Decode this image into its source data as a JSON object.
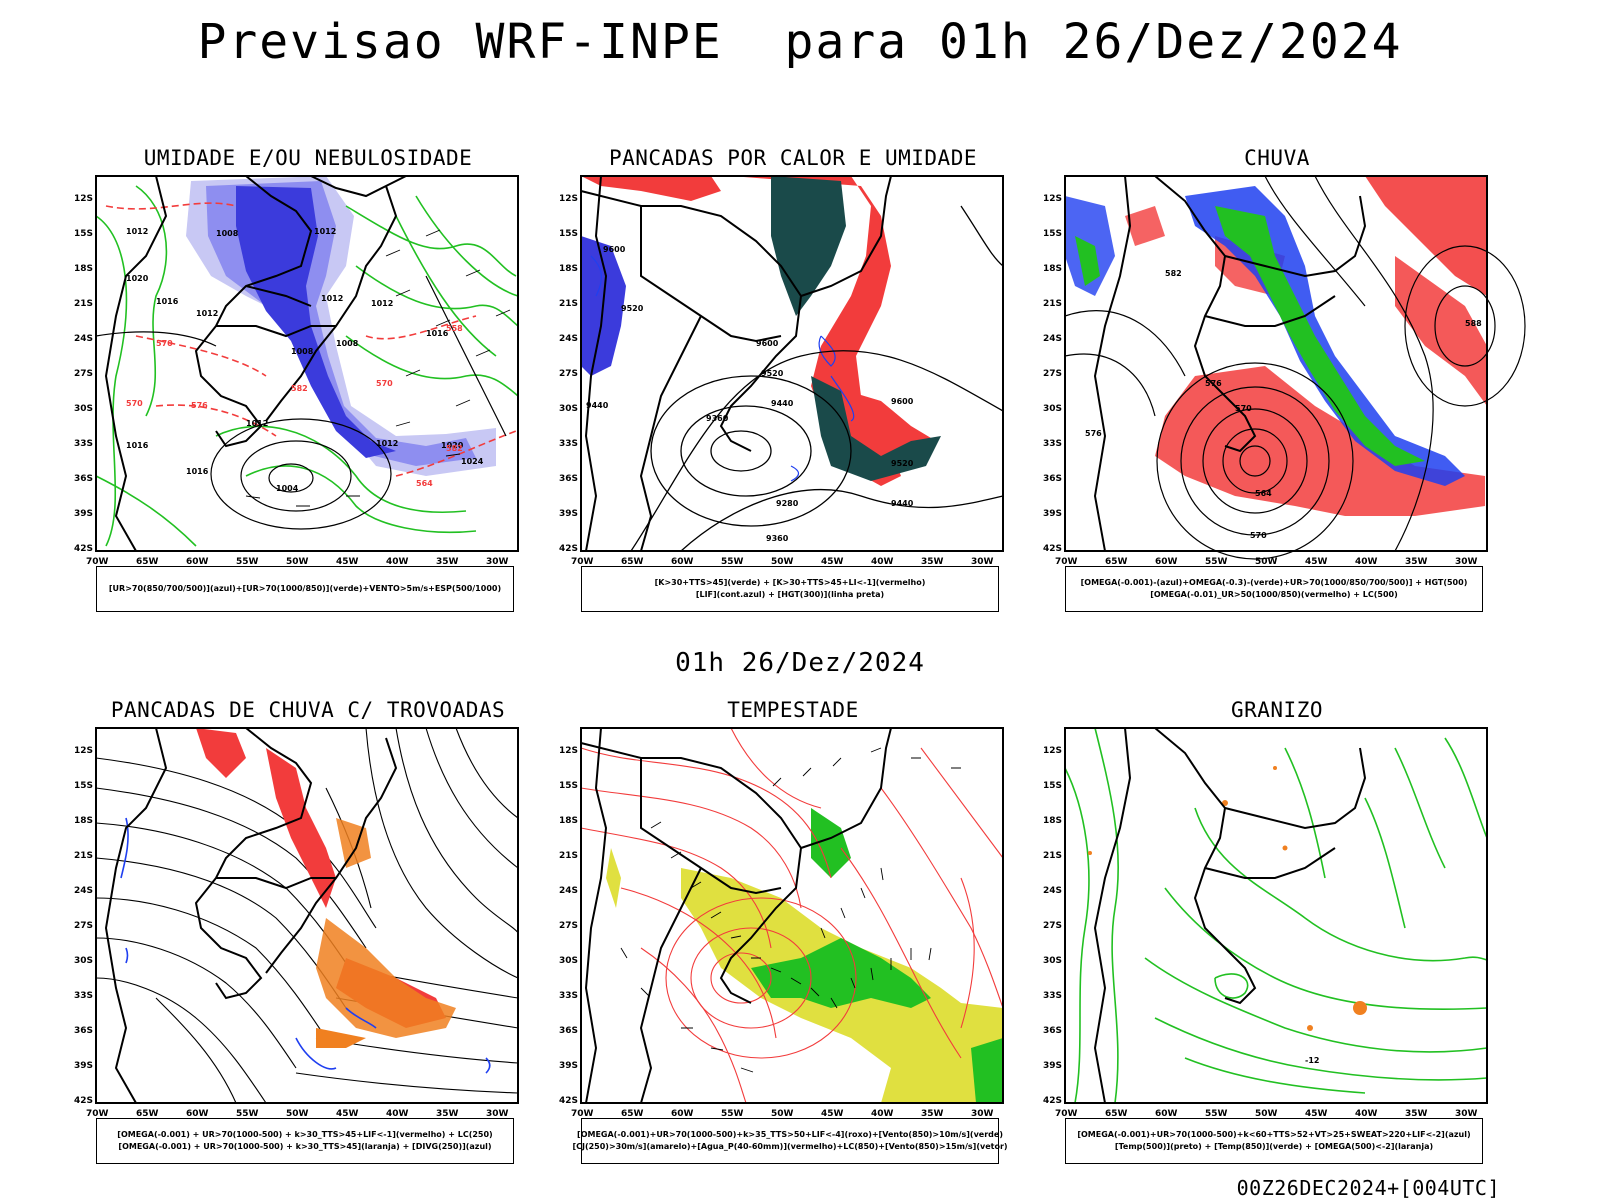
{
  "page": {
    "title": "Previsao WRF-INPE  para 01h 26/Dez/2024",
    "subtitle": "01h 26/Dez/2024",
    "footer": "00Z26DEC2024+[004UTC]"
  },
  "axes": {
    "lat_labels": [
      "12S",
      "15S",
      "18S",
      "21S",
      "24S",
      "27S",
      "30S",
      "33S",
      "36S",
      "39S",
      "42S"
    ],
    "lon_labels": [
      "70W",
      "65W",
      "60W",
      "55W",
      "50W",
      "45W",
      "40W",
      "35W",
      "30W"
    ]
  },
  "colors": {
    "blue": "#1f3ff0",
    "light_blue": "#8e8ef0",
    "pale_blue": "#c8c8f4",
    "green": "#22c022",
    "red": "#f23c3c",
    "dark_teal": "#1a4a4a",
    "yellow": "#e0e040",
    "orange": "#f08020",
    "black": "#000000"
  },
  "panels": [
    {
      "id": "umidade",
      "title": "UMIDADE E/OU NEBULOSIDADE",
      "legend": [
        "[UR>70(850/700/500)](azul)+[UR>70(1000/850)](verde)+VENTO>5m/s+ESP(500/1000)"
      ],
      "contour_labels": [
        "1012",
        "1008",
        "1012",
        "1012",
        "1012",
        "1020",
        "1016",
        "1012",
        "1008",
        "1016",
        "1008",
        "1012",
        "1016",
        "1004",
        "1012",
        "1020",
        "1024",
        "1016",
        "570",
        "576",
        "582",
        "564",
        "582",
        "570",
        "558",
        "570"
      ]
    },
    {
      "id": "pancadas-calor",
      "title": "PANCADAS POR CALOR E UMIDADE",
      "legend": [
        "[K>30+TTS>45](verde) + [K>30+TTS>45+LI<-1](vermelho)",
        "[LIF](cont.azul) + [HGT(300)](linha preta)"
      ],
      "contour_labels": [
        "9600",
        "9520",
        "9600",
        "9520",
        "9440",
        "9360",
        "9280",
        "9360",
        "9440",
        "9520",
        "9440",
        "9600"
      ]
    },
    {
      "id": "chuva",
      "title": "CHUVA",
      "legend": [
        "[OMEGA(-0.001)-(azul)+OMEGA(-0.3)-(verde)+UR>70(1000/850/700/500)] + HGT(500)",
        "[OMEGA(-0.01)_UR>50(1000/850)(vermelho) + LC(500)"
      ],
      "contour_labels": [
        "582",
        "588",
        "576",
        "570",
        "576",
        "564",
        "570"
      ]
    },
    {
      "id": "trovoadas",
      "title": "PANCADAS DE CHUVA C/ TROVOADAS",
      "legend": [
        "[OMEGA(-0.001) + UR>70(1000-500) + k>30_TTS>45+LIF<-1](vermelho) + LC(250)",
        "[OMEGA(-0.001) + UR>70(1000-500) + k>30_TTS>45](laranja) + [DIVG(250)](azul)"
      ],
      "contour_labels": []
    },
    {
      "id": "tempestade",
      "title": "TEMPESTADE",
      "legend": [
        "[OMEGA(-0.001)+UR>70(1000-500)+k>35_TTS>50+LIF<-4](roxo)+[Vento(850)>10m/s](verde)",
        "[CJ(250)>30m/s](amarelo)+[Agua_P(40-60mm)](vermelho)+LC(850)+[Vento(850)>15m/s](vetor)"
      ],
      "contour_labels": []
    },
    {
      "id": "granizo",
      "title": "GRANIZO",
      "legend": [
        "[OMEGA(-0.001)+UR>70(1000-500)+k<60+TTS>52+VT>25+SWEAT>220+LIF<-2](azul)",
        "[Temp(500)](preto) + [Temp(850)](verde) + [OMEGA(500)<-2](laranja)"
      ],
      "contour_labels": [
        "-12"
      ]
    }
  ]
}
